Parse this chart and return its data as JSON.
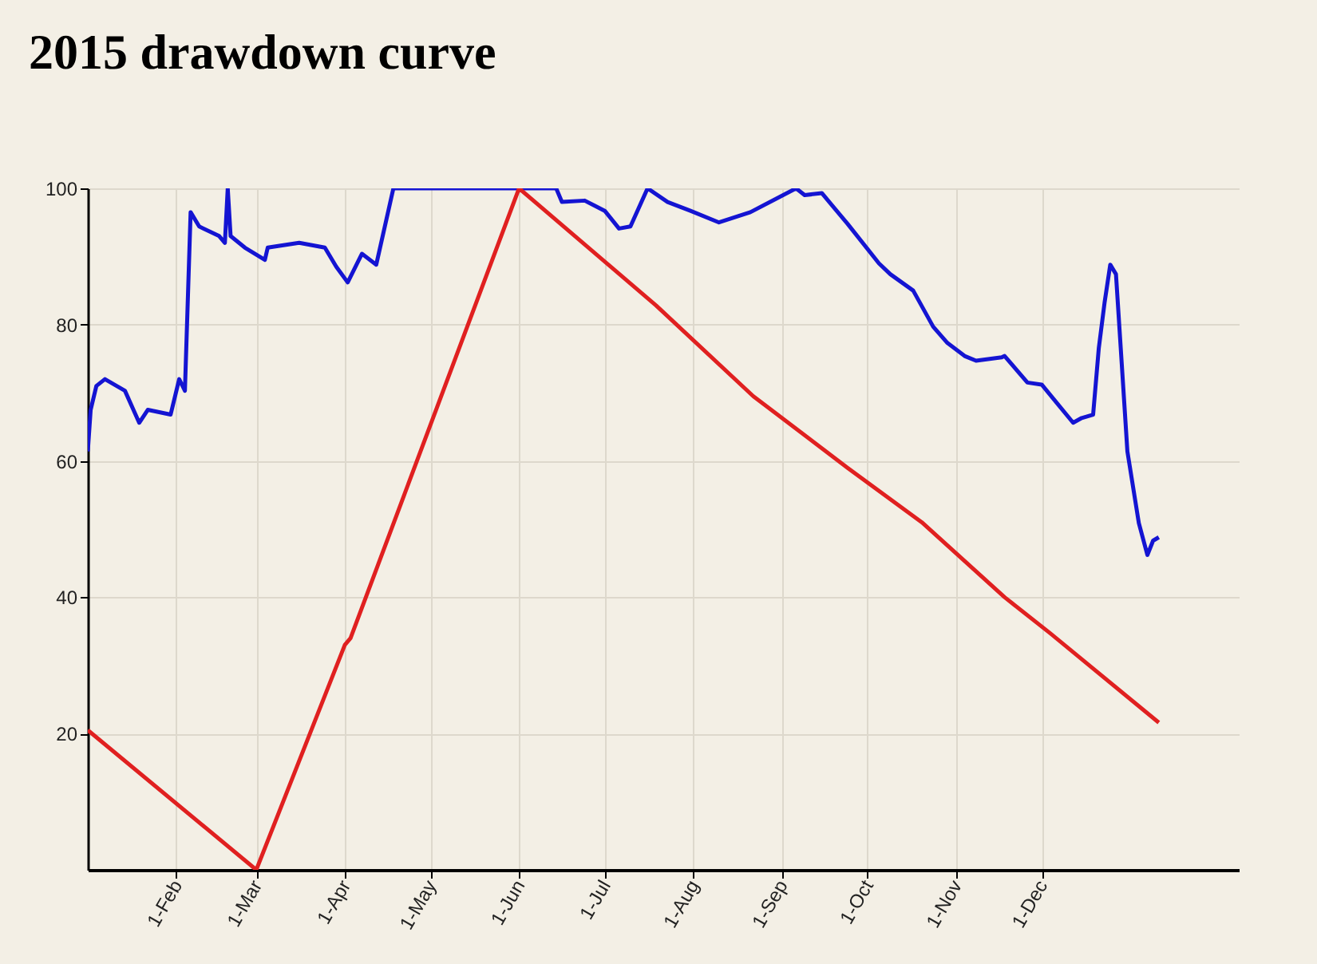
{
  "chart_data": {
    "type": "line",
    "title": "2015 drawdown curve",
    "xlim": [
      "2015-01-01",
      "2016-02-08"
    ],
    "xticks": [
      {
        "value": "2015-02-01",
        "label": "1-Feb"
      },
      {
        "value": "2015-03-01",
        "label": "1-Mar"
      },
      {
        "value": "2015-04-01",
        "label": "1-Apr"
      },
      {
        "value": "2015-05-01",
        "label": "1-May"
      },
      {
        "value": "2015-06-01",
        "label": "1-Jun"
      },
      {
        "value": "2015-07-01",
        "label": "1-Jul"
      },
      {
        "value": "2015-08-01",
        "label": "1-Aug"
      },
      {
        "value": "2015-09-01",
        "label": "1-Sep"
      },
      {
        "value": "2015-10-01",
        "label": "1-Oct"
      },
      {
        "value": "2015-11-01",
        "label": "1-Nov"
      },
      {
        "value": "2015-12-01",
        "label": "1-Dec"
      }
    ],
    "ylim": [
      0,
      100
    ],
    "yticks": [
      20,
      40,
      60,
      80,
      100
    ],
    "grid": true,
    "series": [
      {
        "color": "#1414d2",
        "x": [
          "2015-01-01",
          "2015-01-02",
          "2015-01-04",
          "2015-01-07",
          "2015-01-14",
          "2015-01-19",
          "2015-01-22",
          "2015-01-30",
          "2015-02-02",
          "2015-02-04",
          "2015-02-06",
          "2015-02-09",
          "2015-02-16",
          "2015-02-18",
          "2015-02-19",
          "2015-02-20",
          "2015-02-25",
          "2015-03-04",
          "2015-03-05",
          "2015-03-16",
          "2015-03-25",
          "2015-03-29",
          "2015-04-02",
          "2015-04-07",
          "2015-04-12",
          "2015-04-18",
          "2015-06-14",
          "2015-06-16",
          "2015-06-24",
          "2015-07-01",
          "2015-07-06",
          "2015-07-10",
          "2015-07-16",
          "2015-07-23",
          "2015-07-31",
          "2015-08-10",
          "2015-08-21",
          "2015-09-06",
          "2015-09-09",
          "2015-09-15",
          "2015-09-24",
          "2015-10-05",
          "2015-10-09",
          "2015-10-17",
          "2015-10-24",
          "2015-10-29",
          "2015-11-04",
          "2015-11-08",
          "2015-11-17",
          "2015-11-18",
          "2015-11-26",
          "2015-12-01",
          "2015-12-12",
          "2015-12-15",
          "2015-12-19",
          "2015-12-21",
          "2015-12-23",
          "2015-12-25",
          "2015-12-27",
          "2015-12-31",
          "2016-01-04",
          "2016-01-07",
          "2016-01-09",
          "2016-01-11"
        ],
        "values": [
          61.4,
          67.5,
          71,
          72,
          70.3,
          65.6,
          67.5,
          66.8,
          72,
          70.3,
          96.5,
          94.4,
          93,
          92,
          100,
          93,
          91.3,
          89.5,
          91.3,
          92,
          91.3,
          88.5,
          86.2,
          90.4,
          88.8,
          100,
          100,
          98,
          98.2,
          96.7,
          94.1,
          94.4,
          100,
          98,
          96.7,
          95,
          96.5,
          100,
          99,
          99.3,
          94.8,
          89,
          87.4,
          85,
          79.7,
          77.3,
          75.4,
          74.7,
          75.2,
          75.4,
          71.5,
          71.2,
          65.6,
          66.3,
          66.8,
          76.6,
          83.2,
          88.8,
          87.4,
          61.4,
          50.9,
          46.2,
          48.3,
          48.8
        ]
      },
      {
        "color": "#e02020",
        "x": [
          "2015-01-01",
          "2015-03-01",
          "2015-04-01",
          "2015-04-03",
          "2015-06-01",
          "2015-07-19",
          "2015-08-22",
          "2015-09-24",
          "2015-10-20",
          "2015-11-18",
          "2015-12-04",
          "2016-01-11"
        ],
        "values": [
          20.5,
          0,
          33,
          34,
          100,
          82.8,
          69.5,
          59,
          51,
          40,
          34.7,
          21.6
        ]
      }
    ]
  }
}
